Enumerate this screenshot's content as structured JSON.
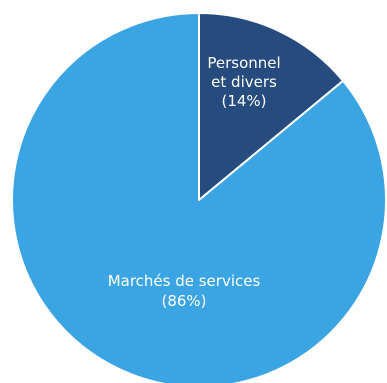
{
  "chart_data": {
    "type": "pie",
    "title": "",
    "slices": [
      {
        "label_lines": [
          "Personnel",
          "et divers",
          "(14%)"
        ],
        "value": 14,
        "color": "#264b7f"
      },
      {
        "label_lines": [
          "Marchés de services",
          "(86%)"
        ],
        "value": 86,
        "color": "#3ba5e4"
      }
    ]
  }
}
